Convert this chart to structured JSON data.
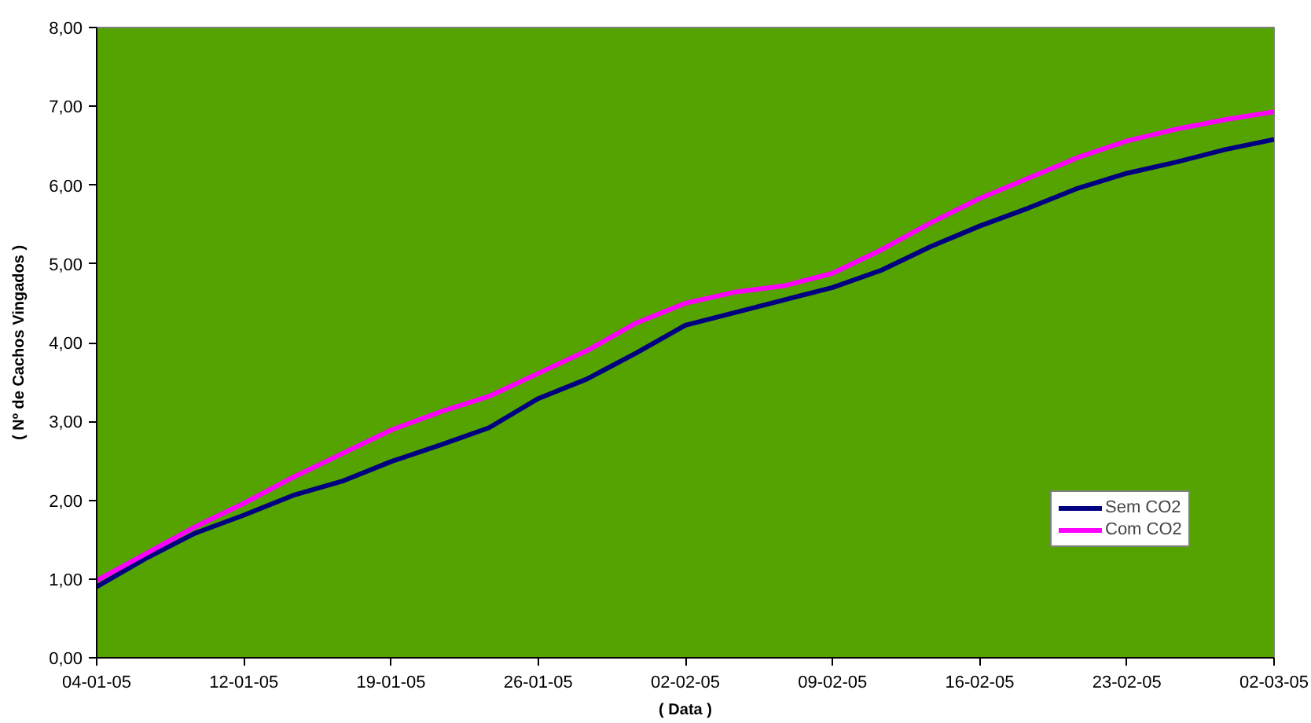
{
  "chart_data": {
    "type": "line",
    "xlabel": "( Data )",
    "ylabel": "( Nº de Cachos Vingados )",
    "categories": [
      "04-01-05",
      null,
      null,
      "12-01-05",
      null,
      null,
      "19-01-05",
      null,
      null,
      "26-01-05",
      null,
      null,
      "02-02-05",
      null,
      null,
      "09-02-05",
      null,
      null,
      "16-02-05",
      null,
      null,
      "23-02-05",
      null,
      null,
      "02-03-05"
    ],
    "series": [
      {
        "name": "Sem CO2",
        "color": "#000080",
        "values": [
          0.9,
          1.26,
          1.58,
          1.81,
          2.06,
          2.24,
          2.49,
          2.7,
          2.92,
          3.29,
          3.54,
          3.87,
          4.22,
          4.38,
          4.54,
          4.7,
          4.92,
          5.22,
          5.48,
          5.71,
          5.96,
          6.15,
          6.29,
          6.45,
          6.58
        ]
      },
      {
        "name": "Com CO2",
        "color": "#ff00ff",
        "values": [
          0.98,
          1.32,
          1.66,
          1.96,
          2.29,
          2.59,
          2.89,
          3.12,
          3.32,
          3.61,
          3.9,
          4.25,
          4.5,
          4.64,
          4.72,
          4.88,
          5.18,
          5.52,
          5.83,
          6.09,
          6.35,
          6.56,
          6.71,
          6.83,
          6.93
        ]
      }
    ],
    "ylim": [
      0,
      8
    ],
    "yticks": [
      {
        "value": 0,
        "label": "0,00"
      },
      {
        "value": 1,
        "label": "1,00"
      },
      {
        "value": 2,
        "label": "2,00"
      },
      {
        "value": 3,
        "label": "3,00"
      },
      {
        "value": 4,
        "label": "4,00"
      },
      {
        "value": 5,
        "label": "5,00"
      },
      {
        "value": 6,
        "label": "6,00"
      },
      {
        "value": 7,
        "label": "7,00"
      },
      {
        "value": 8,
        "label": "8,00"
      }
    ],
    "grid": false,
    "legend": "bottom right",
    "line_style": "solid"
  }
}
